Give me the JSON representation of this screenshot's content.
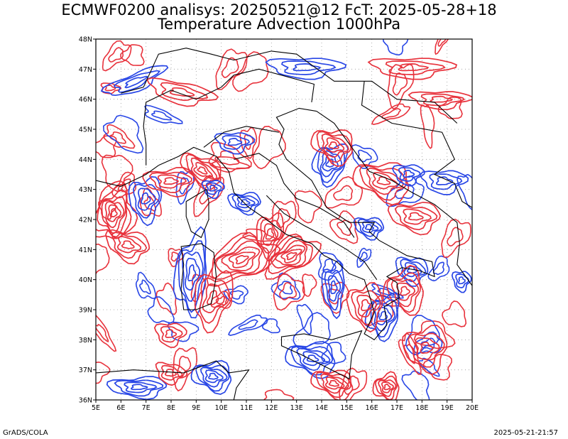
{
  "title_line1": "ECMWF0200 analisys: 20250521@12 FcT: 2025-05-28+18",
  "title_line2": "Temperature Advection 1000hPa",
  "footer_left": "GrADS/COLA",
  "footer_right": "2025-05-21-21:57",
  "map": {
    "lon_range": [
      5,
      20
    ],
    "lat_range": [
      36,
      48
    ],
    "grid": true,
    "x_tick_labels": [
      "5E",
      "6E",
      "7E",
      "8E",
      "9E",
      "10E",
      "11E",
      "12E",
      "13E",
      "14E",
      "15E",
      "16E",
      "17E",
      "18E",
      "19E",
      "20E"
    ],
    "y_tick_labels": [
      "36N",
      "37N",
      "38N",
      "39N",
      "40N",
      "41N",
      "42N",
      "43N",
      "44N",
      "45N",
      "46N",
      "47N",
      "48N"
    ],
    "colors": {
      "warm_contours": "#e8323c",
      "cold_contours": "#2846e6",
      "coastline": "#000000",
      "grid": "#9a9a9a"
    }
  }
}
